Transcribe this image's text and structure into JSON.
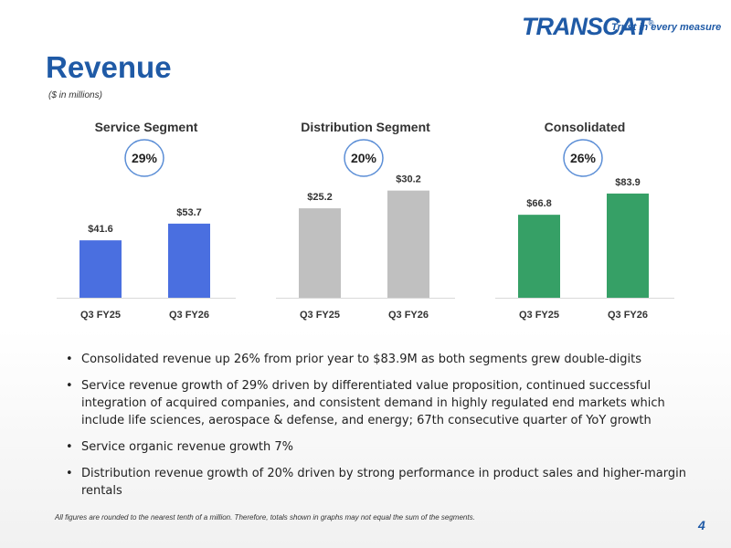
{
  "logo": {
    "brand": "TRANSCAT",
    "registered": "®",
    "tagline": "Trust in every measure"
  },
  "title": "Revenue",
  "units_note": "($ in millions)",
  "chart_data": [
    {
      "type": "bar",
      "title": "Service Segment",
      "categories": [
        "Q3 FY25",
        "Q3 FY26"
      ],
      "values": [
        41.6,
        53.7
      ],
      "value_labels": [
        "$41.6",
        "$53.7"
      ],
      "growth": "29%",
      "color": "#4a6fe0",
      "ylim": [
        0,
        90
      ]
    },
    {
      "type": "bar",
      "title": "Distribution Segment",
      "categories": [
        "Q3 FY25",
        "Q3 FY26"
      ],
      "values": [
        25.2,
        30.2
      ],
      "value_labels": [
        "$25.2",
        "$30.2"
      ],
      "growth": "20%",
      "color": "#c0c0c0",
      "ylim": [
        0,
        35
      ]
    },
    {
      "type": "bar",
      "title": "Consolidated",
      "categories": [
        "Q3 FY25",
        "Q3 FY26"
      ],
      "values": [
        66.8,
        83.9
      ],
      "value_labels": [
        "$66.8",
        "$83.9"
      ],
      "growth": "26%",
      "color": "#36a066",
      "ylim": [
        0,
        100
      ]
    }
  ],
  "bullets": [
    "Consolidated revenue up 26% from prior year to $83.9M as both segments grew double-digits",
    "Service revenue growth of 29% driven by differentiated value proposition, continued successful integration of acquired companies, and consistent demand in highly regulated end markets which include life sciences, aerospace & defense, and energy; 67th consecutive quarter of YoY growth",
    "Service organic revenue growth 7%",
    "Distribution revenue growth of 20% driven by strong performance in product sales and higher-margin rentals"
  ],
  "footnote": "All figures are rounded to the nearest tenth of a million. Therefore, totals shown in graphs may not equal the sum of the segments.",
  "page_number": "4"
}
